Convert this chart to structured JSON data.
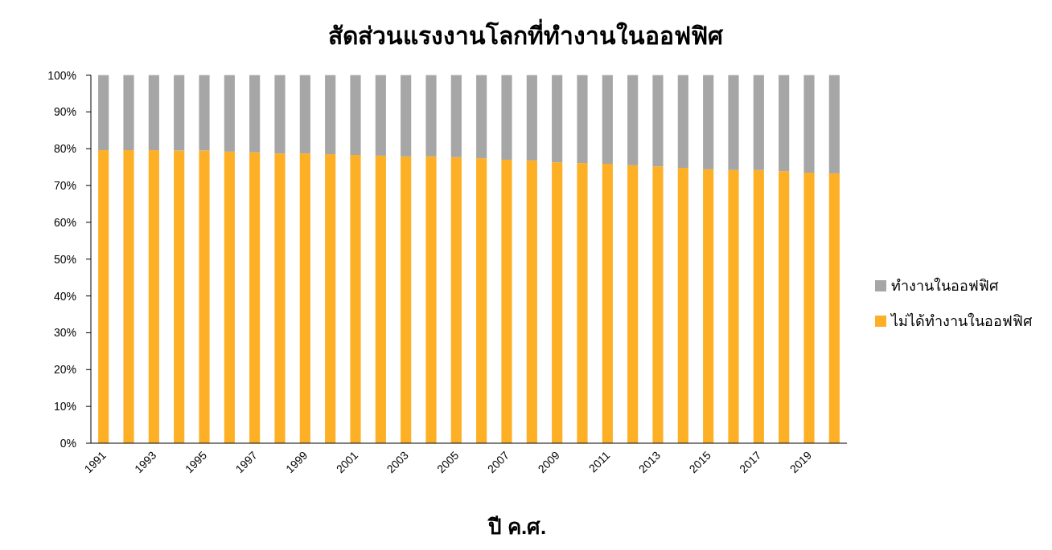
{
  "chart_data": {
    "type": "bar",
    "title": "สัดส่วนแรงงานโลกที่ทำงานในออฟฟิศ",
    "xlabel": "ปี ค.ศ.",
    "categories": [
      "1991",
      null,
      "1993",
      null,
      "1995",
      null,
      "1997",
      null,
      "1999",
      null,
      "2001",
      null,
      "2003",
      null,
      "2005",
      null,
      "2007",
      null,
      "2009",
      null,
      "2011",
      null,
      "2013",
      null,
      "2015",
      null,
      "2017",
      null,
      "2019",
      null
    ],
    "series": [
      {
        "name": "ไม่ได้ทำงานในออฟฟิศ",
        "color": "#fdb026",
        "values": [
          79.6,
          79.6,
          79.6,
          79.5,
          79.5,
          79.2,
          79.0,
          78.7,
          78.7,
          78.5,
          78.3,
          78.1,
          77.9,
          77.9,
          77.7,
          77.4,
          77.0,
          76.8,
          76.3,
          76.1,
          75.9,
          75.5,
          75.2,
          74.8,
          74.4,
          74.2,
          74.2,
          73.9,
          73.5,
          73.3
        ]
      },
      {
        "name": "ทำงานในออฟฟิศ",
        "color": "#a6a6a6",
        "values": [
          20.4,
          20.4,
          20.4,
          20.5,
          20.5,
          20.8,
          21.0,
          21.3,
          21.3,
          21.5,
          21.7,
          21.9,
          22.1,
          22.1,
          22.3,
          22.6,
          23.0,
          23.2,
          23.7,
          23.9,
          24.1,
          24.5,
          24.8,
          25.2,
          25.6,
          25.8,
          25.8,
          26.1,
          26.5,
          26.7
        ]
      }
    ],
    "stacked": true,
    "ylim": [
      0,
      100
    ],
    "yticks": [
      {
        "value": 0,
        "label": "0%"
      },
      {
        "value": 10,
        "label": "10%"
      },
      {
        "value": 20,
        "label": "20%"
      },
      {
        "value": 30,
        "label": "30%"
      },
      {
        "value": 40,
        "label": "40%"
      },
      {
        "value": 50,
        "label": "50%"
      },
      {
        "value": 60,
        "label": "60%"
      },
      {
        "value": 70,
        "label": "70%"
      },
      {
        "value": 80,
        "label": "80%"
      },
      {
        "value": 90,
        "label": "90%"
      },
      {
        "value": 100,
        "label": "100%"
      }
    ],
    "grid": false,
    "legend": "right"
  }
}
